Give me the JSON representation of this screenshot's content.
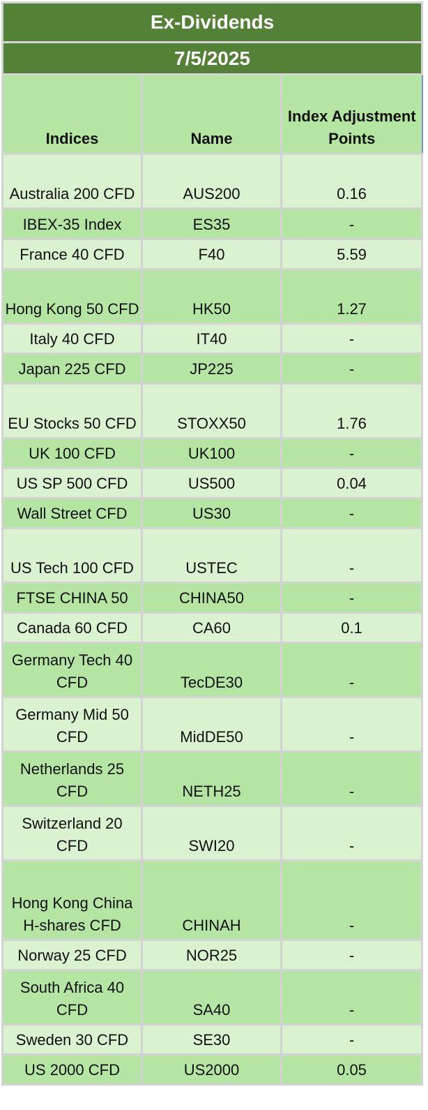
{
  "title": "Ex-Dividends",
  "date": "7/5/2025",
  "columns": {
    "indices": "Indices",
    "name": "Name",
    "points": "Index Adjustment Points"
  },
  "rows": [
    {
      "index": "Australia 200 CFD",
      "name": "AUS200",
      "points": "0.16"
    },
    {
      "index": "IBEX-35 Index",
      "name": "ES35",
      "points": "-"
    },
    {
      "index": "France 40 CFD",
      "name": "F40",
      "points": "5.59"
    },
    {
      "index": "Hong Kong 50 CFD",
      "name": "HK50",
      "points": "1.27"
    },
    {
      "index": "Italy 40 CFD",
      "name": "IT40",
      "points": "-"
    },
    {
      "index": "Japan 225 CFD",
      "name": "JP225",
      "points": "-"
    },
    {
      "index": "EU Stocks 50 CFD",
      "name": "STOXX50",
      "points": "1.76"
    },
    {
      "index": "UK 100 CFD",
      "name": "UK100",
      "points": "-"
    },
    {
      "index": "US SP 500 CFD",
      "name": "US500",
      "points": "0.04"
    },
    {
      "index": "Wall Street CFD",
      "name": "US30",
      "points": "-"
    },
    {
      "index": "US Tech 100 CFD",
      "name": "USTEC",
      "points": "-"
    },
    {
      "index": "FTSE CHINA 50",
      "name": "CHINA50",
      "points": "-"
    },
    {
      "index": "Canada 60 CFD",
      "name": "CA60",
      "points": "0.1"
    },
    {
      "index": "Germany Tech 40 CFD",
      "name": "TecDE30",
      "points": "-"
    },
    {
      "index": "Germany Mid 50 CFD",
      "name": "MidDE50",
      "points": "-"
    },
    {
      "index": "Netherlands 25 CFD",
      "name": "NETH25",
      "points": "-"
    },
    {
      "index": "Switzerland 20 CFD",
      "name": "SWI20",
      "points": "-"
    },
    {
      "index": "Hong Kong China H-shares CFD",
      "name": "CHINAH",
      "points": "-"
    },
    {
      "index": "Norway 25 CFD",
      "name": "NOR25",
      "points": "-"
    },
    {
      "index": "South Africa 40 CFD",
      "name": "SA40",
      "points": "-"
    },
    {
      "index": "Sweden 30 CFD",
      "name": "SE30",
      "points": "-"
    },
    {
      "index": "US 2000 CFD",
      "name": "US2000",
      "points": "0.05"
    }
  ],
  "colors": {
    "title_bg": "#538135",
    "header_bg": "#b4e5a2",
    "row_light": "#daf2d0",
    "row_dark": "#b4e5a2",
    "grid": "#d3d3d3",
    "selection": "#7a8fd6"
  }
}
